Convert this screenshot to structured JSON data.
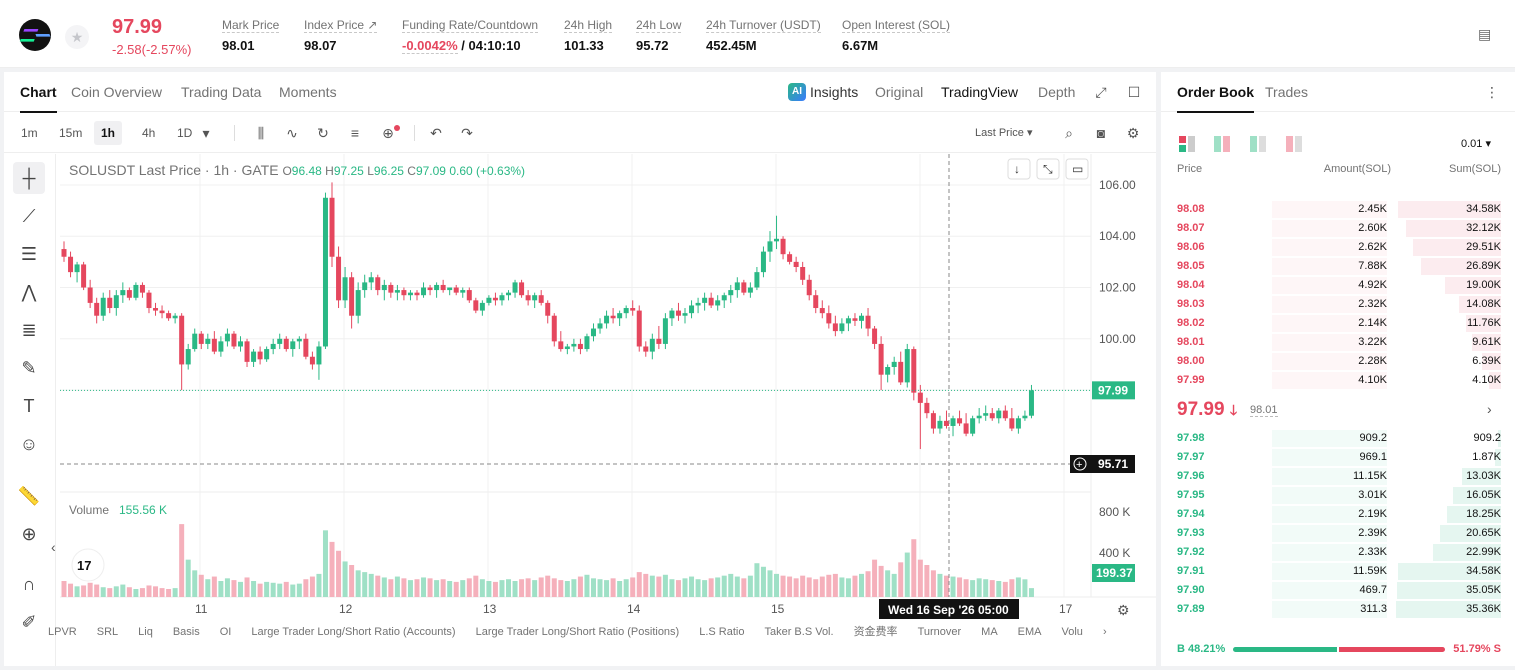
{
  "header": {
    "last_price": "97.99",
    "change": "-2.58(-2.57%)",
    "stats": [
      {
        "label": "Mark Price",
        "value": "98.01",
        "x": 222
      },
      {
        "label": "Index Price ↗",
        "value": "98.07",
        "x": 304
      },
      {
        "label": "Funding Rate/Countdown",
        "value_red": "-0.0042%",
        "value": "/ 04:10:10",
        "x": 402
      },
      {
        "label": "24h High",
        "value": "101.33",
        "x": 564
      },
      {
        "label": "24h Low",
        "value": "95.72",
        "x": 636
      },
      {
        "label": "24h Turnover (USDT)",
        "value": "452.45M",
        "x": 706
      },
      {
        "label": "Open Interest (SOL)",
        "value": "6.67M",
        "x": 842
      }
    ]
  },
  "chart_tabs": [
    "Chart",
    "Coin Overview",
    "Trading Data",
    "Moments"
  ],
  "view_tabs": {
    "insights": "Insights",
    "original": "Original",
    "tradingview": "TradingView",
    "depth": "Depth"
  },
  "timeframes": [
    "1m",
    "15m",
    "1h",
    "4h",
    "1D"
  ],
  "price_type": "Last Price",
  "legend": {
    "symbol": "SOLUSDT Last Price · 1h · GATE",
    "o": "96.48",
    "h": "97.25",
    "l": "96.25",
    "c": "97.09",
    "chg": "0.60 (+0.63%)"
  },
  "volume": {
    "label": "Volume",
    "value": "155.56 K",
    "current": "199.37 K",
    "ticks": [
      "800 K",
      "400 K"
    ]
  },
  "price_axis": {
    "ticks": [
      "106.00",
      "104.00",
      "102.00",
      "100.00"
    ],
    "last": "97.99",
    "cross": "95.71"
  },
  "x_axis": {
    "ticks": [
      "11",
      "12",
      "13",
      "14",
      "15",
      "17"
    ],
    "cross": "Wed 16 Sep '26   05:00"
  },
  "indicators": [
    "LPVR",
    "SRL",
    "Liq",
    "Basis",
    "OI",
    "Large Trader Long/Short Ratio (Accounts)",
    "Large Trader Long/Short Ratio (Positions)",
    "L.S Ratio",
    "Taker B.S Vol.",
    "资金费率",
    "Turnover",
    "MA",
    "EMA",
    "Volu"
  ],
  "orderbook": {
    "tabs": [
      "Order Book",
      "Trades"
    ],
    "precision": "0.01",
    "cols": [
      "Price",
      "Amount(SOL)",
      "Sum(SOL)"
    ],
    "asks": [
      [
        "98.08",
        "2.45K",
        "34.58K"
      ],
      [
        "98.07",
        "2.60K",
        "32.12K"
      ],
      [
        "98.06",
        "2.62K",
        "29.51K"
      ],
      [
        "98.05",
        "7.88K",
        "26.89K"
      ],
      [
        "98.04",
        "4.92K",
        "19.00K"
      ],
      [
        "98.03",
        "2.32K",
        "14.08K"
      ],
      [
        "98.02",
        "2.14K",
        "11.76K"
      ],
      [
        "98.01",
        "3.22K",
        "9.61K"
      ],
      [
        "98.00",
        "2.28K",
        "6.39K"
      ],
      [
        "97.99",
        "4.10K",
        "4.10K"
      ]
    ],
    "mid_price": "97.99",
    "mid_mark": "98.01",
    "bids": [
      [
        "97.98",
        "909.2",
        "909.2"
      ],
      [
        "97.97",
        "969.1",
        "1.87K"
      ],
      [
        "97.96",
        "11.15K",
        "13.03K"
      ],
      [
        "97.95",
        "3.01K",
        "16.05K"
      ],
      [
        "97.94",
        "2.19K",
        "18.25K"
      ],
      [
        "97.93",
        "2.39K",
        "20.65K"
      ],
      [
        "97.92",
        "2.33K",
        "22.99K"
      ],
      [
        "97.91",
        "11.59K",
        "34.58K"
      ],
      [
        "97.90",
        "469.7",
        "35.05K"
      ],
      [
        "97.89",
        "311.3",
        "35.36K"
      ]
    ],
    "buy_pct": "48.21%",
    "sell_pct": "51.79%",
    "buy_label": "B",
    "sell_label": "S"
  },
  "chart_data": {
    "type": "candlestick",
    "ylim": [
      95,
      106.7
    ],
    "candles": [
      [
        103.5,
        103.8,
        103.0,
        103.2
      ],
      [
        103.2,
        103.4,
        102.4,
        102.6
      ],
      [
        102.6,
        103.0,
        102.2,
        102.9
      ],
      [
        102.9,
        103.0,
        101.9,
        102.0
      ],
      [
        102.0,
        102.3,
        101.2,
        101.4
      ],
      [
        101.4,
        101.6,
        100.6,
        100.9
      ],
      [
        100.9,
        101.8,
        100.7,
        101.6
      ],
      [
        101.6,
        101.9,
        101.0,
        101.2
      ],
      [
        101.2,
        101.9,
        100.9,
        101.7
      ],
      [
        101.7,
        102.2,
        101.4,
        101.9
      ],
      [
        101.9,
        102.0,
        101.5,
        101.6
      ],
      [
        101.6,
        102.2,
        101.5,
        102.1
      ],
      [
        102.1,
        102.2,
        101.6,
        101.8
      ],
      [
        101.8,
        101.9,
        101.0,
        101.2
      ],
      [
        101.2,
        101.4,
        100.9,
        101.1
      ],
      [
        101.1,
        101.3,
        100.8,
        101.0
      ],
      [
        101.0,
        101.1,
        100.7,
        100.8
      ],
      [
        100.8,
        101.0,
        100.6,
        100.9
      ],
      [
        100.9,
        101.0,
        98.0,
        99.0
      ],
      [
        99.0,
        99.8,
        98.8,
        99.6
      ],
      [
        99.6,
        100.4,
        99.5,
        100.2
      ],
      [
        100.2,
        100.3,
        99.6,
        99.8
      ],
      [
        99.8,
        100.2,
        99.6,
        100.0
      ],
      [
        100.0,
        100.3,
        99.4,
        99.5
      ],
      [
        99.5,
        100.1,
        99.3,
        99.9
      ],
      [
        99.9,
        100.4,
        99.7,
        100.2
      ],
      [
        100.2,
        100.3,
        99.6,
        99.7
      ],
      [
        99.7,
        100.1,
        99.5,
        99.9
      ],
      [
        99.9,
        100.0,
        98.9,
        99.1
      ],
      [
        99.1,
        99.6,
        98.9,
        99.5
      ],
      [
        99.5,
        99.7,
        99.0,
        99.2
      ],
      [
        99.2,
        99.7,
        99.1,
        99.6
      ],
      [
        99.6,
        100.0,
        99.4,
        99.8
      ],
      [
        99.8,
        100.2,
        99.6,
        100.0
      ],
      [
        100.0,
        100.1,
        99.5,
        99.6
      ],
      [
        99.6,
        100.0,
        99.3,
        99.9
      ],
      [
        99.9,
        100.1,
        99.6,
        100.0
      ],
      [
        100.0,
        100.2,
        99.2,
        99.3
      ],
      [
        99.3,
        99.5,
        98.8,
        99.0
      ],
      [
        99.0,
        99.9,
        98.4,
        99.7
      ],
      [
        99.7,
        105.7,
        99.6,
        105.5
      ],
      [
        105.5,
        106.1,
        102.8,
        103.2
      ],
      [
        103.2,
        103.6,
        101.2,
        101.5
      ],
      [
        101.5,
        102.8,
        101.2,
        102.4
      ],
      [
        102.4,
        102.6,
        100.4,
        100.9
      ],
      [
        100.9,
        102.2,
        100.6,
        101.9
      ],
      [
        101.9,
        102.5,
        101.6,
        102.2
      ],
      [
        102.2,
        102.6,
        101.9,
        102.4
      ],
      [
        102.4,
        102.5,
        101.7,
        101.9
      ],
      [
        101.9,
        102.3,
        101.5,
        102.1
      ],
      [
        102.1,
        102.2,
        101.6,
        101.8
      ],
      [
        101.8,
        102.1,
        101.5,
        101.9
      ],
      [
        101.9,
        102.0,
        101.5,
        101.7
      ],
      [
        101.7,
        101.9,
        101.5,
        101.8
      ],
      [
        101.8,
        101.9,
        101.5,
        101.7
      ],
      [
        101.7,
        102.2,
        101.6,
        102.0
      ],
      [
        102.0,
        102.1,
        101.7,
        101.9
      ],
      [
        101.9,
        102.2,
        101.6,
        102.1
      ],
      [
        102.1,
        102.3,
        101.8,
        101.9
      ],
      [
        101.9,
        102.0,
        101.7,
        102.0
      ],
      [
        102.0,
        102.1,
        101.7,
        101.8
      ],
      [
        101.8,
        102.0,
        101.6,
        101.9
      ],
      [
        101.9,
        102.0,
        101.4,
        101.5
      ],
      [
        101.5,
        101.6,
        101.0,
        101.1
      ],
      [
        101.1,
        101.5,
        100.9,
        101.4
      ],
      [
        101.4,
        101.7,
        101.3,
        101.6
      ],
      [
        101.6,
        101.8,
        101.3,
        101.5
      ],
      [
        101.5,
        101.8,
        101.3,
        101.7
      ],
      [
        101.7,
        101.9,
        101.5,
        101.8
      ],
      [
        101.8,
        102.3,
        101.6,
        102.2
      ],
      [
        102.2,
        102.3,
        101.6,
        101.7
      ],
      [
        101.7,
        101.9,
        101.3,
        101.5
      ],
      [
        101.5,
        101.8,
        101.2,
        101.7
      ],
      [
        101.7,
        101.9,
        101.3,
        101.4
      ],
      [
        101.4,
        101.5,
        100.6,
        100.9
      ],
      [
        100.9,
        101.0,
        99.7,
        99.9
      ],
      [
        99.9,
        100.3,
        99.5,
        99.6
      ],
      [
        99.6,
        99.8,
        99.4,
        99.7
      ],
      [
        99.7,
        100.0,
        99.5,
        99.8
      ],
      [
        99.8,
        100.0,
        99.4,
        99.6
      ],
      [
        99.6,
        100.2,
        99.5,
        100.1
      ],
      [
        100.1,
        100.6,
        99.9,
        100.4
      ],
      [
        100.4,
        100.8,
        100.2,
        100.6
      ],
      [
        100.6,
        101.1,
        100.4,
        100.9
      ],
      [
        100.9,
        101.2,
        100.6,
        100.8
      ],
      [
        100.8,
        101.1,
        100.5,
        101.0
      ],
      [
        101.0,
        101.3,
        100.8,
        101.2
      ],
      [
        101.2,
        101.5,
        100.9,
        101.1
      ],
      [
        101.1,
        101.3,
        99.5,
        99.7
      ],
      [
        99.7,
        99.9,
        99.3,
        99.5
      ],
      [
        99.5,
        100.2,
        99.2,
        100.0
      ],
      [
        100.0,
        100.5,
        99.6,
        99.8
      ],
      [
        99.8,
        101.0,
        99.6,
        100.8
      ],
      [
        100.8,
        101.2,
        100.5,
        101.1
      ],
      [
        101.1,
        101.4,
        100.7,
        100.9
      ],
      [
        100.9,
        101.2,
        100.6,
        101.0
      ],
      [
        101.0,
        101.5,
        100.8,
        101.3
      ],
      [
        101.3,
        101.6,
        101.0,
        101.4
      ],
      [
        101.4,
        101.8,
        101.1,
        101.6
      ],
      [
        101.6,
        101.8,
        101.2,
        101.3
      ],
      [
        101.3,
        101.7,
        101.1,
        101.5
      ],
      [
        101.5,
        101.8,
        101.2,
        101.7
      ],
      [
        101.7,
        102.1,
        101.4,
        101.9
      ],
      [
        101.9,
        102.4,
        101.6,
        102.2
      ],
      [
        102.2,
        102.3,
        101.7,
        101.8
      ],
      [
        101.8,
        102.2,
        101.6,
        102.0
      ],
      [
        102.0,
        102.8,
        101.9,
        102.6
      ],
      [
        102.6,
        103.6,
        102.4,
        103.4
      ],
      [
        103.4,
        104.2,
        103.0,
        103.8
      ],
      [
        103.8,
        104.8,
        103.5,
        103.9
      ],
      [
        103.9,
        104.0,
        103.1,
        103.3
      ],
      [
        103.3,
        103.4,
        102.9,
        103.0
      ],
      [
        103.0,
        103.2,
        102.6,
        102.8
      ],
      [
        102.8,
        103.0,
        102.1,
        102.3
      ],
      [
        102.3,
        102.5,
        101.5,
        101.7
      ],
      [
        101.7,
        101.9,
        101.0,
        101.2
      ],
      [
        101.2,
        101.5,
        100.8,
        101.0
      ],
      [
        101.0,
        101.3,
        100.4,
        100.6
      ],
      [
        100.6,
        100.9,
        100.1,
        100.3
      ],
      [
        100.3,
        100.8,
        100.2,
        100.6
      ],
      [
        100.6,
        100.9,
        100.3,
        100.8
      ],
      [
        100.8,
        101.0,
        100.5,
        100.7
      ],
      [
        100.7,
        101.0,
        100.4,
        100.9
      ],
      [
        100.9,
        101.2,
        100.1,
        100.4
      ],
      [
        100.4,
        100.5,
        99.6,
        99.8
      ],
      [
        99.8,
        100.1,
        98.0,
        98.6
      ],
      [
        98.6,
        99.0,
        98.3,
        98.9
      ],
      [
        98.9,
        99.3,
        98.6,
        99.1
      ],
      [
        99.1,
        99.5,
        98.2,
        98.3
      ],
      [
        98.3,
        99.8,
        98.1,
        99.6
      ],
      [
        99.6,
        99.7,
        97.6,
        97.9
      ],
      [
        97.9,
        98.2,
        95.7,
        97.5
      ],
      [
        97.5,
        97.7,
        96.9,
        97.1
      ],
      [
        97.1,
        97.2,
        96.3,
        96.5
      ],
      [
        96.5,
        97.0,
        96.3,
        96.8
      ],
      [
        96.8,
        97.2,
        96.5,
        96.6
      ],
      [
        96.6,
        97.0,
        96.2,
        96.9
      ],
      [
        96.9,
        97.2,
        96.6,
        96.7
      ],
      [
        96.7,
        97.1,
        96.2,
        96.3
      ],
      [
        96.3,
        97.0,
        96.2,
        96.9
      ],
      [
        96.9,
        97.3,
        96.7,
        97.0
      ],
      [
        97.0,
        97.4,
        96.8,
        97.1
      ],
      [
        97.1,
        97.3,
        96.8,
        96.9
      ],
      [
        96.9,
        97.3,
        96.7,
        97.2
      ],
      [
        97.2,
        97.4,
        96.8,
        96.9
      ],
      [
        96.9,
        97.3,
        96.4,
        96.5
      ],
      [
        96.5,
        97.0,
        96.3,
        96.9
      ],
      [
        96.9,
        97.2,
        96.8,
        97.0
      ],
      [
        97.0,
        98.2,
        96.9,
        97.99
      ]
    ],
    "volumes": [
      180,
      150,
      120,
      130,
      160,
      140,
      110,
      100,
      120,
      140,
      110,
      90,
      100,
      130,
      120,
      100,
      90,
      100,
      820,
      420,
      300,
      250,
      200,
      230,
      180,
      210,
      190,
      170,
      220,
      180,
      150,
      170,
      160,
      150,
      170,
      140,
      150,
      200,
      230,
      260,
      750,
      620,
      520,
      400,
      360,
      300,
      280,
      260,
      240,
      220,
      200,
      230,
      210,
      190,
      200,
      220,
      210,
      190,
      200,
      180,
      170,
      190,
      210,
      240,
      200,
      180,
      170,
      190,
      200,
      180,
      200,
      210,
      190,
      220,
      240,
      210,
      190,
      180,
      200,
      230,
      250,
      210,
      200,
      190,
      210,
      180,
      200,
      220,
      280,
      260,
      240,
      230,
      250,
      200,
      190,
      210,
      230,
      200,
      190,
      210,
      220,
      240,
      260,
      230,
      210,
      240,
      380,
      340,
      300,
      260,
      240,
      230,
      210,
      240,
      220,
      200,
      230,
      250,
      260,
      220,
      210,
      240,
      260,
      290,
      420,
      350,
      300,
      260,
      390,
      500,
      650,
      420,
      360,
      300,
      260,
      240,
      230,
      220,
      200,
      190,
      210,
      200,
      190,
      180,
      170,
      200,
      220,
      199
    ]
  }
}
